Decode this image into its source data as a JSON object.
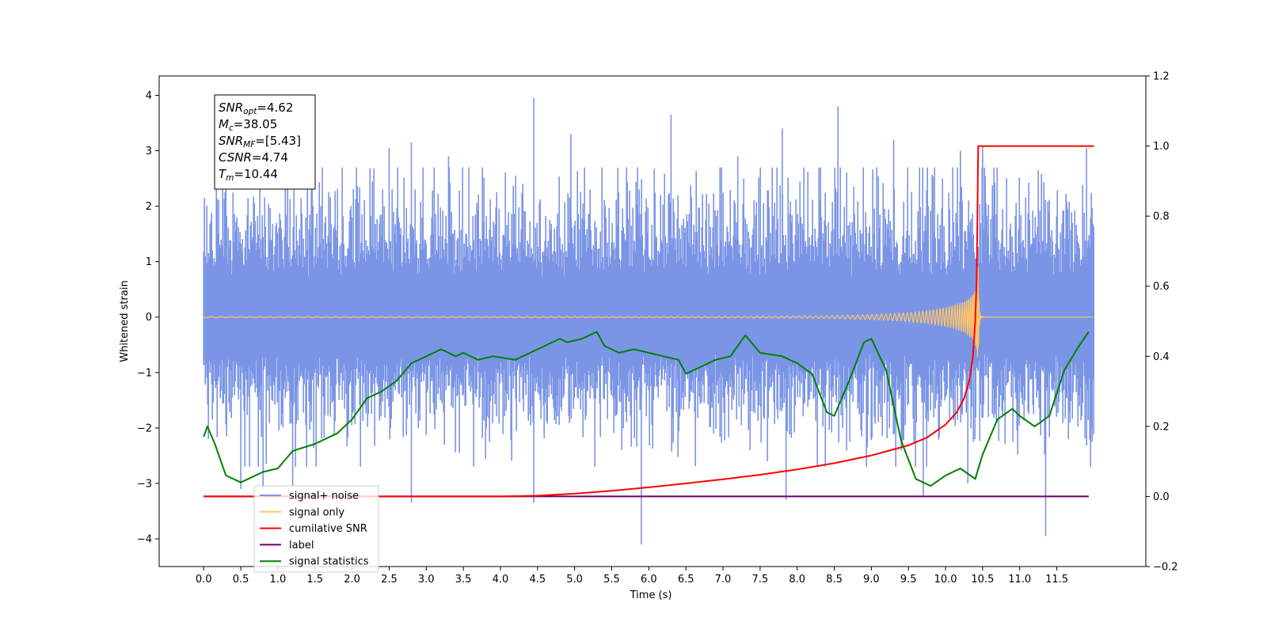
{
  "chart_data": {
    "type": "line",
    "xlabel": "Time (s)",
    "ylabel_left": "Whitened strain",
    "ylabel_right": "",
    "xlim": [
      -0.6,
      12.7
    ],
    "ylim_left": [
      -4.5,
      4.35
    ],
    "ylim_right": [
      -0.2,
      1.2
    ],
    "x_ticks": [
      0.0,
      0.5,
      1.0,
      1.5,
      2.0,
      2.5,
      3.0,
      3.5,
      4.0,
      4.5,
      5.0,
      5.5,
      6.0,
      6.5,
      7.0,
      7.5,
      8.0,
      8.5,
      9.0,
      9.5,
      10.0,
      10.5,
      11.0,
      11.5
    ],
    "x_tick_labels": [
      "0.0",
      "0.5",
      "1.0",
      "1.5",
      "2.0",
      "2.5",
      "3.0",
      "3.5",
      "4.0",
      "4.5",
      "5.0",
      "5.5",
      "6.0",
      "6.5",
      "7.0",
      "7.5",
      "8.0",
      "8.5",
      "9.0",
      "9.5",
      "10.0",
      "10.5",
      "11.0",
      "11.5"
    ],
    "y_ticks_left": [
      4,
      3,
      2,
      1,
      0,
      -1,
      -2,
      -3,
      -4
    ],
    "y_tick_labels_left": [
      "4",
      "3",
      "2",
      "1",
      "0",
      "−1",
      "−2",
      "−3",
      "−4"
    ],
    "y_ticks_right": [
      1.2,
      1.0,
      0.8,
      0.6,
      0.4,
      0.2,
      0.0,
      -0.2
    ],
    "y_tick_labels_right": [
      "1.2",
      "1.0",
      "0.8",
      "0.6",
      "0.4",
      "0.2",
      "0.0",
      "−0.2"
    ],
    "grid": false,
    "legend_position": "lower-left",
    "legend": [
      {
        "label": "signal+ noise",
        "color": "#7b95e6"
      },
      {
        "label": "signal only",
        "color": "#ffc469"
      },
      {
        "label": "cumilative SNR",
        "color": "#ff0000"
      },
      {
        "label": "label",
        "color": "#6a0070"
      },
      {
        "label": "signal statistics",
        "color": "#008000"
      }
    ],
    "stats_box": [
      {
        "symbol": "SNR",
        "sub": "opt",
        "value": "=4.62"
      },
      {
        "symbol": "M",
        "sub": "c",
        "value": "=38.05"
      },
      {
        "symbol": "SNR",
        "sub": "MF",
        "value": "=[5.43]"
      },
      {
        "symbol": "CSNR",
        "sub": "",
        "value": "=4.74"
      },
      {
        "symbol": "T",
        "sub": "m",
        "value": "=10.44"
      }
    ],
    "series": [
      {
        "name": "signal+ noise",
        "axis": "left",
        "color": "#7b95e6",
        "kind": "noise-band",
        "x_range": [
          0.0,
          12.0
        ],
        "typical_upper": 2.0,
        "typical_lower": -1.8,
        "spikes": [
          [
            0.3,
            2.6
          ],
          [
            1.1,
            3.05
          ],
          [
            1.6,
            2.7
          ],
          [
            2.5,
            3.05
          ],
          [
            2.8,
            3.15
          ],
          [
            3.3,
            2.9
          ],
          [
            4.45,
            3.95
          ],
          [
            4.95,
            3.3
          ],
          [
            5.7,
            2.7
          ],
          [
            6.3,
            3.65
          ],
          [
            7.2,
            2.9
          ],
          [
            7.8,
            3.4
          ],
          [
            8.55,
            3.8
          ],
          [
            9.3,
            3.2
          ],
          [
            10.2,
            3.0
          ],
          [
            10.5,
            3.1
          ],
          [
            11.25,
            2.65
          ],
          [
            11.9,
            3.05
          ],
          [
            0.5,
            -3.1
          ],
          [
            0.8,
            -3.1
          ],
          [
            1.2,
            -3.05
          ],
          [
            2.8,
            -3.35
          ],
          [
            4.45,
            -3.35
          ],
          [
            5.9,
            -4.1
          ],
          [
            7.85,
            -3.3
          ],
          [
            9.7,
            -3.25
          ],
          [
            10.3,
            -3.0
          ],
          [
            11.35,
            -3.95
          ]
        ]
      },
      {
        "name": "signal only",
        "axis": "left",
        "color": "#ffc469",
        "kind": "chirp",
        "t_merger": 10.44,
        "x_range": [
          0.0,
          12.0
        ],
        "peak": 0.9
      },
      {
        "name": "cumilative SNR",
        "axis": "right",
        "color": "#ff0000",
        "x": [
          0.0,
          4.0,
          4.5,
          5.0,
          5.5,
          6.0,
          6.5,
          7.0,
          7.5,
          8.0,
          8.5,
          9.0,
          9.5,
          9.75,
          10.0,
          10.15,
          10.25,
          10.32,
          10.37,
          10.4,
          10.42,
          10.43,
          10.44,
          11.0,
          11.5,
          12.0
        ],
        "y": [
          0.0,
          0.0,
          0.002,
          0.008,
          0.016,
          0.026,
          0.037,
          0.049,
          0.062,
          0.077,
          0.095,
          0.117,
          0.146,
          0.168,
          0.205,
          0.24,
          0.28,
          0.33,
          0.4,
          0.5,
          0.62,
          0.8,
          1.0,
          1.0,
          1.0,
          1.0
        ]
      },
      {
        "name": "label",
        "axis": "right",
        "color": "#6a0070",
        "x": [
          0.0,
          11.93
        ],
        "y": [
          0.0,
          0.0
        ]
      },
      {
        "name": "signal statistics",
        "axis": "right",
        "color": "#008000",
        "x": [
          0.0,
          0.05,
          0.15,
          0.3,
          0.5,
          0.8,
          1.0,
          1.2,
          1.5,
          1.8,
          2.0,
          2.2,
          2.4,
          2.6,
          2.8,
          3.0,
          3.2,
          3.4,
          3.5,
          3.7,
          3.9,
          4.2,
          4.4,
          4.6,
          4.8,
          4.9,
          5.1,
          5.3,
          5.4,
          5.6,
          5.8,
          6.0,
          6.2,
          6.4,
          6.5,
          6.7,
          6.9,
          7.1,
          7.2,
          7.3,
          7.5,
          7.8,
          8.0,
          8.2,
          8.4,
          8.5,
          8.7,
          8.9,
          9.0,
          9.2,
          9.4,
          9.6,
          9.8,
          10.0,
          10.2,
          10.4,
          10.5,
          10.7,
          10.9,
          11.0,
          11.2,
          11.4,
          11.6,
          11.8,
          11.93
        ],
        "y": [
          0.17,
          0.2,
          0.15,
          0.06,
          0.04,
          0.07,
          0.08,
          0.13,
          0.15,
          0.18,
          0.22,
          0.28,
          0.3,
          0.33,
          0.38,
          0.4,
          0.42,
          0.4,
          0.41,
          0.39,
          0.4,
          0.39,
          0.41,
          0.43,
          0.45,
          0.44,
          0.45,
          0.47,
          0.43,
          0.41,
          0.42,
          0.41,
          0.4,
          0.39,
          0.35,
          0.37,
          0.39,
          0.4,
          0.43,
          0.46,
          0.41,
          0.4,
          0.38,
          0.35,
          0.24,
          0.23,
          0.33,
          0.44,
          0.45,
          0.36,
          0.16,
          0.05,
          0.03,
          0.06,
          0.08,
          0.05,
          0.12,
          0.22,
          0.25,
          0.23,
          0.2,
          0.23,
          0.36,
          0.43,
          0.47
        ]
      }
    ]
  }
}
